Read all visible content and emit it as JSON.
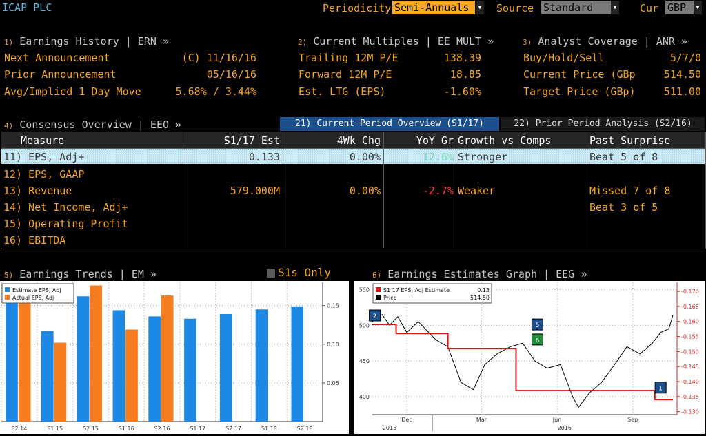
{
  "header": {
    "ticker": "ICAP PLC",
    "periodicity_label": "Periodicity",
    "periodicity_value": "Semi-Annuals",
    "source_label": "Source",
    "source_value": "Standard",
    "currency_label": "Cur",
    "currency_value": "GBP"
  },
  "earnings_history": {
    "num": "1)",
    "title": "Earnings History | ERN »",
    "rows": [
      {
        "label": "Next Announcement",
        "value": "(C)  11/16/16"
      },
      {
        "label": "Prior Announcement",
        "value": "05/16/16"
      },
      {
        "label": "Avg/Implied 1 Day Move",
        "value": "5.68% / 3.44%"
      }
    ]
  },
  "current_multiples": {
    "num": "2)",
    "title": "Current Multiples | EE MULT »",
    "rows": [
      {
        "label": "Trailing 12M P/E",
        "value": "138.39"
      },
      {
        "label": "Forward 12M P/E",
        "value": "18.85"
      },
      {
        "label": "Est. LTG (EPS)",
        "value": "-1.60%"
      }
    ]
  },
  "analyst_coverage": {
    "num": "3)",
    "title": "Analyst Coverage | ANR »",
    "rows": [
      {
        "label": "Buy/Hold/Sell",
        "value": "5/7/0"
      },
      {
        "label": "Current Price (GBp",
        "value": "514.50"
      },
      {
        "label": "Target Price (GBp)",
        "value": "511.00"
      }
    ]
  },
  "consensus": {
    "num": "4)",
    "title": "Consensus Overview | EEO »",
    "tab_current": "21) Current Period Overview (S1/17)",
    "tab_prior": "22) Prior Period Analysis (S2/16)",
    "columns": [
      "Measure",
      "S1/17 Est",
      "4Wk Chg",
      "YoY Gr",
      "Growth vs Comps",
      "Past Surprise"
    ],
    "rows": [
      {
        "measure": "11) EPS, Adj+",
        "est": "0.133",
        "chg": "0.00%",
        "yoy": "12.6%",
        "growth": "Stronger",
        "surprise": "Beat 5 of 8"
      },
      {
        "measure": "12) EPS, GAAP",
        "est": "",
        "chg": "",
        "yoy": "",
        "growth": "",
        "surprise": ""
      },
      {
        "measure": "13) Revenue",
        "est": "579.000M",
        "chg": "0.00%",
        "yoy": "-2.7%",
        "growth": "Weaker",
        "surprise": "Missed 7 of 8"
      },
      {
        "measure": "14) Net Income, Adj+",
        "est": "",
        "chg": "",
        "yoy": "",
        "growth": "",
        "surprise": "Beat 3 of 5"
      },
      {
        "measure": "15) Operating Profit",
        "est": "",
        "chg": "",
        "yoy": "",
        "growth": "",
        "surprise": ""
      },
      {
        "measure": "16) EBITDA",
        "est": "",
        "chg": "",
        "yoy": "",
        "growth": "",
        "surprise": ""
      }
    ]
  },
  "trends": {
    "num": "5)",
    "title": "Earnings Trends | EM »",
    "s1_only": "S1s Only",
    "legend": [
      "Estimate EPS, Adj",
      "Actual EPS, Adj"
    ]
  },
  "estimates_graph": {
    "num": "6)",
    "title": "Earnings Estimates Graph | EEG »",
    "legend_est": "S1 17 EPS, Adj Estimate",
    "legend_est_value": "0.13",
    "legend_price": "Price",
    "legend_price_value": "514.50",
    "markers": [
      "2",
      "5",
      "6",
      "1"
    ],
    "x_ticks": [
      "Dec",
      "Mar",
      "Jun",
      "Sep"
    ],
    "x_years": [
      "2015",
      "2016"
    ]
  },
  "colors": {
    "amber": "#f5a623",
    "estimate": "#1e88e5",
    "actual": "#f57c1f",
    "estimate_line": "#e01010",
    "price_line": "#000000",
    "highlight_row": "#bfe3ef",
    "tab_active": "#1d4f8c"
  },
  "chart_data": [
    {
      "type": "bar",
      "title": "",
      "categories": [
        "S2 14",
        "S1 15",
        "S2 15",
        "S1 16",
        "S2 16",
        "S1 17",
        "S2 17",
        "S1 18",
        "S2 18"
      ],
      "series": [
        {
          "name": "Estimate EPS, Adj",
          "values": [
            0.153,
            0.117,
            0.162,
            0.144,
            0.136,
            0.133,
            0.139,
            0.145,
            0.149
          ]
        },
        {
          "name": "Actual EPS, Adj",
          "values": [
            0.17,
            0.102,
            0.176,
            0.119,
            0.163,
            null,
            null,
            null,
            null
          ]
        }
      ],
      "y_ticks": [
        0.05,
        0.1,
        0.15
      ],
      "ylim": [
        0,
        0.18
      ],
      "grid": true,
      "legend": "top-left"
    },
    {
      "type": "line",
      "title": "",
      "series": [
        {
          "name": "S1 17 EPS, Adj Estimate",
          "axis": "right",
          "x": [
            "2015-10-20",
            "2015-11-18",
            "2016-01-20",
            "2016-04-12",
            "2016-09-08",
            "2016-09-28",
            "2016-10-20"
          ],
          "values": [
            0.159,
            0.156,
            0.151,
            0.137,
            0.137,
            0.134,
            0.134
          ]
        },
        {
          "name": "Price",
          "axis": "left",
          "x": [
            "2015-10-20",
            "2015-11-01",
            "2015-11-10",
            "2015-11-20",
            "2015-12-01",
            "2015-12-15",
            "2016-01-05",
            "2016-01-20",
            "2016-02-05",
            "2016-02-20",
            "2016-03-05",
            "2016-03-20",
            "2016-04-05",
            "2016-04-20",
            "2016-05-05",
            "2016-05-20",
            "2016-06-05",
            "2016-06-20",
            "2016-06-27",
            "2016-07-10",
            "2016-07-25",
            "2016-08-10",
            "2016-08-25",
            "2016-09-10",
            "2016-09-25",
            "2016-10-05",
            "2016-10-15",
            "2016-10-20"
          ],
          "values": [
            505,
            515,
            500,
            512,
            490,
            505,
            480,
            470,
            420,
            410,
            445,
            460,
            470,
            475,
            450,
            440,
            445,
            400,
            385,
            405,
            420,
            445,
            470,
            460,
            475,
            490,
            495,
            514.5
          ]
        }
      ],
      "y_left_ticks": [
        400,
        450,
        500,
        550
      ],
      "y_right_ticks": [
        0.13,
        0.135,
        0.14,
        0.145,
        0.15,
        0.155,
        0.16,
        0.165,
        0.17
      ],
      "ylim_left": [
        375,
        560
      ],
      "ylim_right": [
        0.129,
        0.173
      ],
      "x_ticks": [
        "Dec",
        "Mar",
        "Jun",
        "Sep"
      ],
      "legend": "top-left"
    }
  ]
}
